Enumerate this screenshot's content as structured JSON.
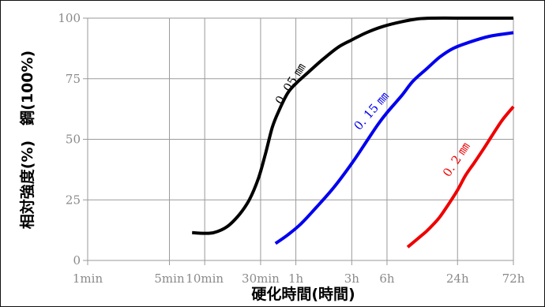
{
  "chart_data": {
    "type": "line",
    "title": "",
    "xlabel": "硬化時間(時間)",
    "ylabel": "相対強度(%)　鋼(100%)",
    "x_scale": "log",
    "x_unit": "hours",
    "xlim": [
      0.0167,
      72
    ],
    "ylim": [
      0,
      100
    ],
    "grid": true,
    "x_ticks": [
      {
        "value": 0.0167,
        "label": "1min"
      },
      {
        "value": 0.0833,
        "label": "5min"
      },
      {
        "value": 0.1667,
        "label": "10min"
      },
      {
        "value": 0.5,
        "label": "30min"
      },
      {
        "value": 1,
        "label": "1h"
      },
      {
        "value": 3,
        "label": "3h"
      },
      {
        "value": 6,
        "label": "6h"
      },
      {
        "value": 24,
        "label": "24h"
      },
      {
        "value": 72,
        "label": "72h"
      }
    ],
    "y_ticks": [
      0,
      25,
      50,
      75,
      100
    ],
    "series": [
      {
        "name": "0.05 mm",
        "color": "#000000",
        "points": [
          [
            0.13,
            11.5
          ],
          [
            0.16,
            11.2
          ],
          [
            0.2,
            11.5
          ],
          [
            0.26,
            14
          ],
          [
            0.33,
            19
          ],
          [
            0.4,
            25
          ],
          [
            0.48,
            34
          ],
          [
            0.55,
            44
          ],
          [
            0.63,
            55
          ],
          [
            0.72,
            62
          ],
          [
            0.85,
            69
          ],
          [
            1.0,
            73
          ],
          [
            1.3,
            78
          ],
          [
            1.7,
            83
          ],
          [
            2.3,
            88
          ],
          [
            3.0,
            91
          ],
          [
            4.0,
            94
          ],
          [
            5.5,
            96.5
          ],
          [
            8,
            98.5
          ],
          [
            11,
            99.7
          ],
          [
            15,
            100
          ],
          [
            30,
            100
          ],
          [
            72,
            100
          ]
        ]
      },
      {
        "name": "0.15 mm",
        "color": "#0000ee",
        "points": [
          [
            0.67,
            7
          ],
          [
            0.85,
            10.5
          ],
          [
            1.1,
            15
          ],
          [
            1.5,
            22
          ],
          [
            2.1,
            30
          ],
          [
            3.0,
            40
          ],
          [
            4.0,
            49
          ],
          [
            5.0,
            56
          ],
          [
            6.0,
            61
          ],
          [
            8,
            68
          ],
          [
            10,
            74
          ],
          [
            13,
            79
          ],
          [
            17,
            84
          ],
          [
            22,
            87.5
          ],
          [
            30,
            90
          ],
          [
            45,
            92.5
          ],
          [
            72,
            94
          ]
        ]
      },
      {
        "name": "0.2 mm",
        "color": "#ee0000",
        "points": [
          [
            9,
            5.5
          ],
          [
            11,
            9
          ],
          [
            13,
            12
          ],
          [
            15,
            15
          ],
          [
            17,
            18
          ],
          [
            20,
            23
          ],
          [
            24,
            29
          ],
          [
            28,
            35
          ],
          [
            33,
            40
          ],
          [
            40,
            46
          ],
          [
            48,
            52
          ],
          [
            58,
            58
          ],
          [
            72,
            63.5
          ]
        ]
      }
    ],
    "curve_labels": [
      {
        "text": "0. 05 ㎜",
        "series": "0.05 mm"
      },
      {
        "text": "0. 15 ㎜",
        "series": "0.15 mm"
      },
      {
        "text": "0. 2 ㎜",
        "series": "0.2 mm"
      }
    ]
  }
}
